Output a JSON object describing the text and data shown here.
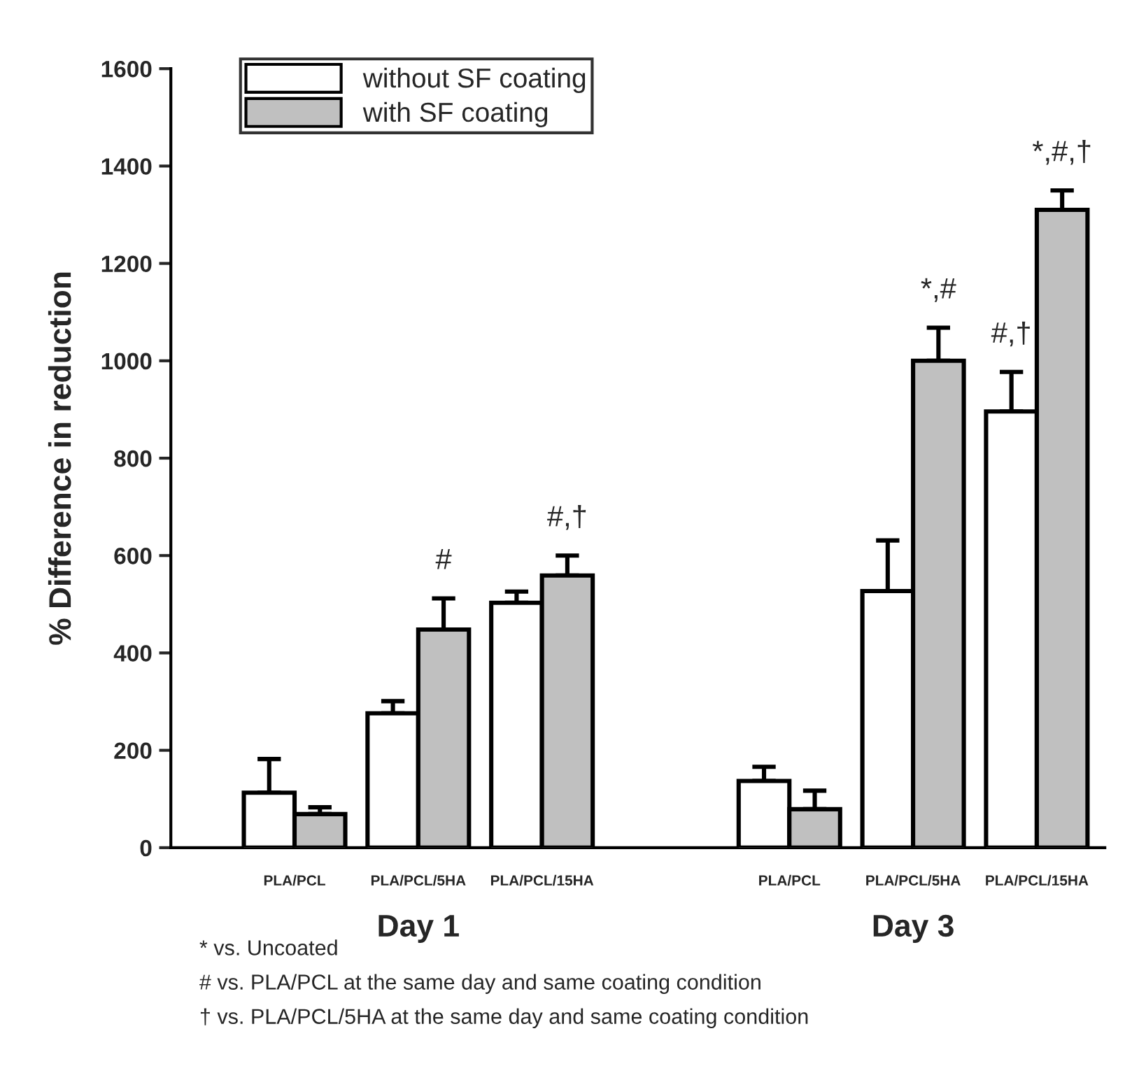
{
  "chart_data": {
    "type": "bar",
    "ylabel": "% Difference in reduction",
    "categories": [
      "PLA/PCL",
      "PLA/PCL/5HA",
      "PLA/PCL/15HA",
      null,
      "PLA/PCL",
      "PLA/PCL/5HA",
      "PLA/PCL/15HA"
    ],
    "series": [
      {
        "name": "without SF coating",
        "color": "#ffffff",
        "values": [
          113,
          276,
          503,
          null,
          137,
          527,
          896
        ],
        "errors": [
          69,
          25,
          23,
          null,
          29,
          104,
          81
        ]
      },
      {
        "name": "with SF coating",
        "color": "#c0c0c0",
        "values": [
          69,
          448,
          559,
          null,
          79,
          1000,
          1310
        ],
        "errors": [
          14,
          64,
          41,
          null,
          38,
          68,
          40
        ]
      }
    ],
    "ylim": [
      0,
      1600
    ],
    "yticks": [
      0,
      200,
      400,
      600,
      800,
      1000,
      1200,
      1400,
      1600
    ],
    "legend": "top left",
    "grid": false,
    "annotations": [
      "Day 1",
      "Day 3",
      "#",
      "#,†",
      "*,#",
      "#,†",
      "*,#,†",
      "* vs. Uncoated",
      "# vs. PLA/PCL at the same day and same coating condition",
      "† vs. PLA/PCL/5HA at the same day and same coating condition"
    ]
  }
}
